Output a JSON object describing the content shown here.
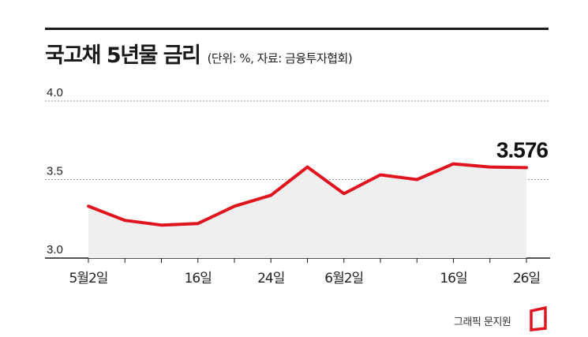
{
  "header": {
    "title": "국고채 5년물 금리",
    "subtitle": "(단위: %, 자료: 금융투자협회)"
  },
  "chart_data": {
    "type": "area",
    "title": "국고채 5년물 금리",
    "unit": "%",
    "source": "금융투자협회",
    "ylim": [
      3.0,
      4.0
    ],
    "yticks": [
      "4.0",
      "3.5",
      "3.0"
    ],
    "grid": true,
    "x_tick_labels": [
      "5월2일",
      "16일",
      "24일",
      "6월2일",
      "16일",
      "26일"
    ],
    "series": [
      {
        "values": [
          3.33,
          3.24,
          3.21,
          3.22,
          3.33,
          3.4,
          3.58,
          3.41,
          3.53,
          3.5,
          3.6,
          3.58,
          3.576
        ]
      }
    ],
    "last_value_label": "3.576",
    "colors": {
      "line": "#e0141e",
      "area": "#efefef",
      "grid": "#999999",
      "axis": "#1a1a1a"
    }
  },
  "credit": "그래픽 문지원"
}
